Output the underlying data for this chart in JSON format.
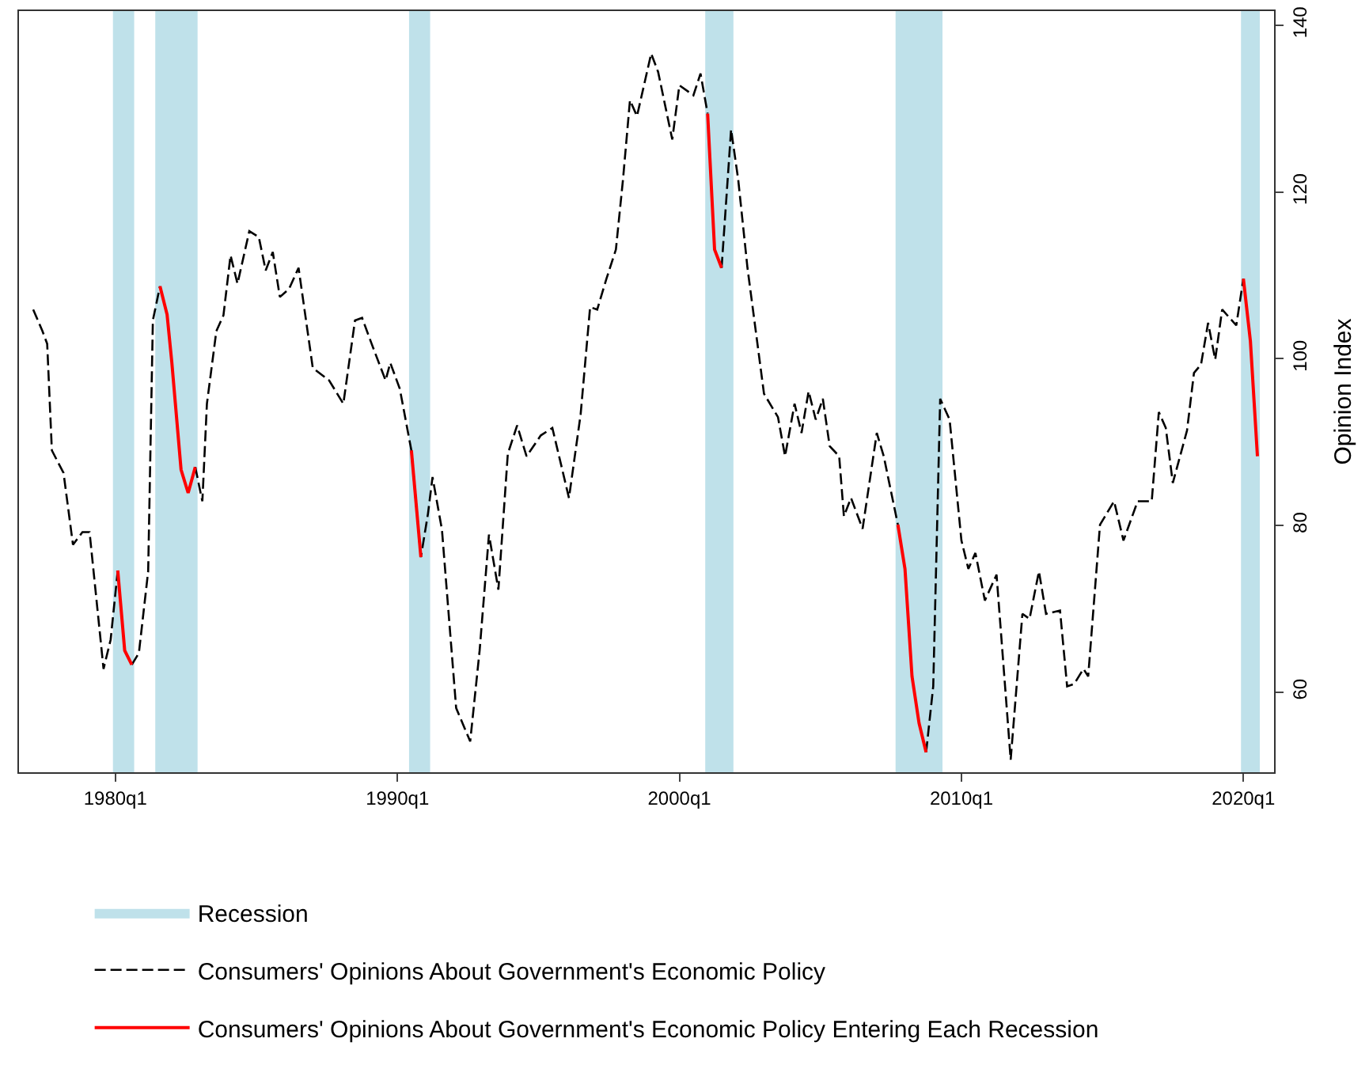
{
  "chart_data": {
    "type": "line",
    "ylabel": "Opinion Index",
    "xlim": [
      "1976-08",
      "2021-02"
    ],
    "ylim": [
      50.4,
      141.7
    ],
    "xticks": [
      {
        "value": "1980-01",
        "label": "1980q1"
      },
      {
        "value": "1990-01",
        "label": "1990q1"
      },
      {
        "value": "2000-01",
        "label": "2000q1"
      },
      {
        "value": "2010-01",
        "label": "2010q1"
      },
      {
        "value": "2020-01",
        "label": "2020q1"
      }
    ],
    "yticks": [
      60,
      80,
      100,
      120,
      140
    ],
    "legend": "bottom",
    "bands": [
      {
        "axis": "x",
        "from": "1979-12",
        "to": "1980-09",
        "label": "Recession",
        "color": "#bfe1ea"
      },
      {
        "axis": "x",
        "from": "1981-06",
        "to": "1982-12",
        "color": "#bfe1ea"
      },
      {
        "axis": "x",
        "from": "1990-06",
        "to": "1991-03",
        "color": "#bfe1ea"
      },
      {
        "axis": "x",
        "from": "2000-12",
        "to": "2001-12",
        "color": "#bfe1ea"
      },
      {
        "axis": "x",
        "from": "2007-09",
        "to": "2009-05",
        "color": "#bfe1ea"
      },
      {
        "axis": "x",
        "from": "2019-12",
        "to": "2020-08",
        "color": "#bfe1ea"
      }
    ],
    "series": [
      {
        "name": "Consumers' Opinions About Government's Economic Policy",
        "color": "#000000",
        "line_style": "dashed",
        "x": [
          "1977-02",
          "1977-06",
          "1977-08",
          "1977-10",
          "1978-03",
          "1978-07",
          "1978-11",
          "1979-02",
          "1979-08",
          "1979-11",
          "1980-02",
          "1980-05",
          "1980-08",
          "1980-11",
          "1981-03",
          "1981-05",
          "1981-08",
          "1981-11",
          "1982-01",
          "1982-05",
          "1982-08",
          "1982-11",
          "1983-02",
          "1983-04",
          "1983-08",
          "1983-11",
          "1984-02",
          "1984-05",
          "1984-10",
          "1985-02",
          "1985-05",
          "1985-08",
          "1985-11",
          "1986-03",
          "1986-07",
          "1987-01",
          "1987-08",
          "1988-02",
          "1988-07",
          "1988-10",
          "1989-02",
          "1989-08",
          "1989-10",
          "1990-02",
          "1990-07",
          "1990-11",
          "1991-02",
          "1991-04",
          "1991-08",
          "1992-02",
          "1992-08",
          "1992-12",
          "1993-04",
          "1993-08",
          "1993-12",
          "1994-04",
          "1994-08",
          "1995-02",
          "1995-07",
          "1996-02",
          "1996-07",
          "1996-11",
          "1997-02",
          "1997-06",
          "1997-10",
          "1998-01",
          "1998-04",
          "1998-07",
          "1999-01",
          "1999-04",
          "1999-10",
          "2000-01",
          "2000-07",
          "2000-10",
          "2001-01",
          "2001-04",
          "2001-07",
          "2001-11",
          "2002-02",
          "2002-06",
          "2003-01",
          "2003-07",
          "2003-10",
          "2004-02",
          "2004-05",
          "2004-08",
          "2004-11",
          "2005-02",
          "2005-05",
          "2005-09",
          "2005-11",
          "2006-02",
          "2006-07",
          "2007-01",
          "2007-04",
          "2007-10",
          "2008-01",
          "2008-04",
          "2008-07",
          "2008-10",
          "2009-01",
          "2009-04",
          "2009-08",
          "2010-01",
          "2010-04",
          "2010-07",
          "2010-11",
          "2011-04",
          "2011-10",
          "2012-03",
          "2012-06",
          "2012-10",
          "2013-01",
          "2013-07",
          "2013-10",
          "2014-01",
          "2014-05",
          "2014-07",
          "2014-12",
          "2015-06",
          "2015-10",
          "2016-04",
          "2016-10",
          "2017-01",
          "2017-04",
          "2017-07",
          "2018-01",
          "2018-04",
          "2018-07",
          "2018-10",
          "2019-01",
          "2019-04",
          "2019-10",
          "2020-01"
        ],
        "values": [
          105.9,
          103.3,
          101.8,
          89.0,
          86.3,
          77.7,
          79.2,
          79.2,
          62.8,
          66.3,
          74.6,
          null,
          63.3,
          64.7,
          74.5,
          104.6,
          108.7,
          null,
          null,
          null,
          null,
          87.0,
          82.9,
          94.6,
          103.3,
          105.2,
          112.4,
          109.0,
          115.3,
          114.6,
          110.6,
          112.8,
          107.4,
          108.4,
          110.9,
          98.9,
          97.4,
          94.6,
          104.6,
          104.9,
          101.8,
          97.4,
          99.5,
          96.4,
          89.0,
          76.2,
          81.4,
          85.8,
          79.5,
          58.1,
          54.1,
          65.0,
          78.9,
          72.3,
          88.6,
          92.0,
          88.3,
          90.8,
          91.7,
          83.3,
          93.3,
          106.2,
          105.9,
          109.6,
          113.1,
          121.5,
          131.0,
          129.1,
          136.6,
          134.4,
          126.3,
          132.8,
          131.6,
          134.2,
          129.4,
          null,
          110.9,
          127.5,
          121.5,
          110.9,
          95.8,
          93.0,
          88.3,
          94.6,
          91.1,
          96.1,
          92.7,
          95.2,
          89.5,
          88.3,
          81.1,
          83.3,
          79.6,
          91.1,
          88.3,
          80.1,
          null,
          null,
          null,
          52.8,
          60.7,
          95.2,
          92.7,
          78.2,
          74.8,
          76.7,
          71.0,
          74.1,
          51.9,
          69.4,
          68.8,
          74.5,
          69.4,
          69.8,
          60.7,
          61.0,
          62.8,
          61.9,
          80.1,
          82.9,
          78.2,
          82.9,
          82.9,
          93.6,
          91.7,
          85.1,
          91.4,
          98.3,
          99.3,
          104.3,
          99.9,
          105.9,
          104.0,
          109.6
        ]
      },
      {
        "name": "Consumers' Opinions About Government's Economic Policy Entering Each Recession",
        "color": "#ff0000",
        "line_style": "solid",
        "x": [
          "1980-02",
          "1980-05",
          "1980-08",
          null,
          "1981-08",
          "1981-11",
          "1982-01",
          "1982-05",
          "1982-08",
          "1982-11",
          null,
          "1990-07",
          "1990-11",
          null,
          "2001-01",
          "2001-04",
          "2001-07",
          null,
          "2007-10",
          "2008-01",
          "2008-04",
          "2008-07",
          "2008-10",
          null,
          "2020-01",
          "2020-04",
          "2020-07"
        ],
        "values": [
          74.6,
          65.0,
          63.3,
          null,
          108.7,
          105.3,
          99.6,
          86.7,
          83.9,
          87.0,
          null,
          89.0,
          76.2,
          null,
          129.4,
          113.1,
          110.9,
          null,
          80.1,
          74.8,
          61.9,
          56.3,
          52.8,
          null,
          109.6,
          102.1,
          88.3
        ]
      }
    ]
  }
}
